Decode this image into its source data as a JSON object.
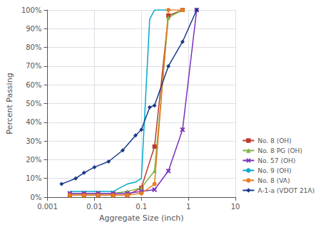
{
  "chart_data": {
    "type": "line",
    "xlabel": "Aggregate Size (inch)",
    "ylabel": "Percent Passing",
    "log": "x",
    "xlim": [
      0.001,
      10
    ],
    "xticks": [
      0.001,
      0.01,
      0.1,
      1,
      10
    ],
    "ylim": [
      0.0,
      1.0
    ],
    "yticks": [
      {
        "value": 0.0,
        "label": "0%"
      },
      {
        "value": 0.1,
        "label": "10%"
      },
      {
        "value": 0.2,
        "label": "20%"
      },
      {
        "value": 0.3,
        "label": "30%"
      },
      {
        "value": 0.4,
        "label": "40%"
      },
      {
        "value": 0.5,
        "label": "50%"
      },
      {
        "value": 0.6,
        "label": "60%"
      },
      {
        "value": 0.7,
        "label": "70%"
      },
      {
        "value": 0.8,
        "label": "80%"
      },
      {
        "value": 0.9,
        "label": "90%"
      },
      {
        "value": 1.0,
        "label": "100%"
      }
    ],
    "grid": true,
    "legend": "lower right",
    "series": [
      {
        "name": "No. 8 (OH)",
        "color": "#c0392b",
        "marker": "square",
        "x": [
          0.003,
          0.006,
          0.012,
          0.025,
          0.05,
          0.1,
          0.19,
          0.375,
          0.75
        ],
        "values": [
          0.01,
          0.01,
          0.01,
          0.01,
          0.01,
          0.05,
          0.27,
          0.97,
          1.0
        ]
      },
      {
        "name": "No. 8 PG (OH)",
        "color": "#7cb342",
        "marker": "triangle",
        "x": [
          0.003,
          0.006,
          0.012,
          0.025,
          0.05,
          0.1,
          0.19,
          0.375,
          0.75
        ],
        "values": [
          0.02,
          0.02,
          0.02,
          0.02,
          0.03,
          0.05,
          0.14,
          0.96,
          1.0
        ]
      },
      {
        "name": "No. 57 (OH)",
        "color": "#7b2fbe",
        "marker": "x",
        "x": [
          0.003,
          0.006,
          0.012,
          0.025,
          0.05,
          0.1,
          0.19,
          0.375,
          0.75,
          1.5
        ],
        "values": [
          0.02,
          0.02,
          0.02,
          0.02,
          0.02,
          0.03,
          0.04,
          0.14,
          0.36,
          1.0
        ]
      },
      {
        "name": "No. 9 (OH)",
        "color": "#00aacc",
        "marker": "none",
        "x": [
          0.003,
          0.006,
          0.012,
          0.025,
          0.05,
          0.075,
          0.1,
          0.15,
          0.19,
          0.375
        ],
        "values": [
          0.03,
          0.03,
          0.03,
          0.03,
          0.07,
          0.08,
          0.1,
          0.95,
          1.0,
          1.0
        ]
      },
      {
        "name": "No. 8 (VA)",
        "color": "#e67e22",
        "marker": "circle",
        "x": [
          0.003,
          0.006,
          0.012,
          0.025,
          0.05,
          0.1,
          0.19,
          0.375,
          0.75
        ],
        "values": [
          0.01,
          0.01,
          0.01,
          0.01,
          0.01,
          0.02,
          0.07,
          1.0,
          1.0
        ]
      },
      {
        "name": "A-1-a (VDOT 21A)",
        "color": "#1a3a8a",
        "marker": "diamond",
        "x": [
          0.002,
          0.004,
          0.006,
          0.01,
          0.02,
          0.04,
          0.075,
          0.1,
          0.15,
          0.19,
          0.375,
          0.75,
          1.5
        ],
        "values": [
          0.07,
          0.1,
          0.13,
          0.16,
          0.19,
          0.25,
          0.33,
          0.36,
          0.48,
          0.49,
          0.7,
          0.83,
          1.0
        ]
      }
    ]
  }
}
